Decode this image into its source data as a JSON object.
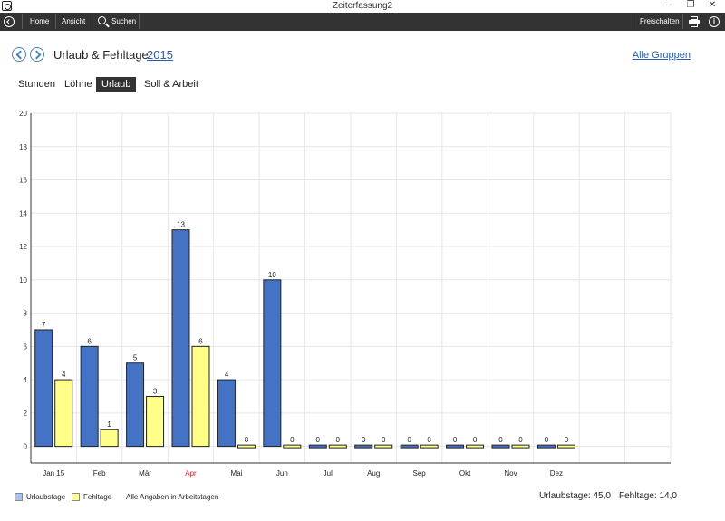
{
  "window": {
    "title": "Zeiterfassung2",
    "minimize": "–",
    "restore": "❐",
    "close": "✕"
  },
  "toolbar": {
    "home": "Home",
    "view": "Ansicht",
    "search": "Suchen",
    "unlock": "Freischalten",
    "icons": {
      "back": "back-arrow-icon",
      "search": "search-icon",
      "print": "printer-icon",
      "info": "info-icon"
    }
  },
  "header": {
    "title": "Urlaub & Fehltage",
    "year": "2015",
    "groups_link": "Alle Gruppen",
    "info_glyph": "i"
  },
  "tabs": [
    {
      "label": "Stunden",
      "active": false
    },
    {
      "label": "Löhne",
      "active": false
    },
    {
      "label": "Urlaub",
      "active": true
    },
    {
      "label": "Soll & Arbeit",
      "active": false
    }
  ],
  "chart_data": {
    "type": "bar",
    "categories": [
      "Jan 15",
      "Feb",
      "Mär",
      "Apr",
      "Mai",
      "Jun",
      "Jul",
      "Aug",
      "Sep",
      "Okt",
      "Nov",
      "Dez"
    ],
    "highlight_category": "Apr",
    "highlight_color": "#e02020",
    "series": [
      {
        "name": "Urlaubstage",
        "color": "#4472c4",
        "values": [
          7,
          6,
          5,
          13,
          4,
          10,
          0,
          0,
          0,
          0,
          0,
          0
        ]
      },
      {
        "name": "Fehltage",
        "color": "#ffff88",
        "values": [
          4,
          1,
          3,
          6,
          0,
          0,
          0,
          0,
          0,
          0,
          0,
          0
        ]
      }
    ],
    "yticks": [
      0,
      2,
      4,
      6,
      8,
      10,
      12,
      14,
      16,
      18,
      20
    ],
    "ylim": [
      -1,
      20
    ],
    "grid": true
  },
  "footer": {
    "legend": [
      {
        "label": "Urlaubstage",
        "color": "#a9c4ee"
      },
      {
        "label": "Fehltage",
        "color": "#ffff99"
      }
    ],
    "note": "Alle Angaben in Arbeitstagen",
    "vacation_total": "Urlaubstage: 45,0",
    "absence_total": "Fehltage: 14,0"
  }
}
